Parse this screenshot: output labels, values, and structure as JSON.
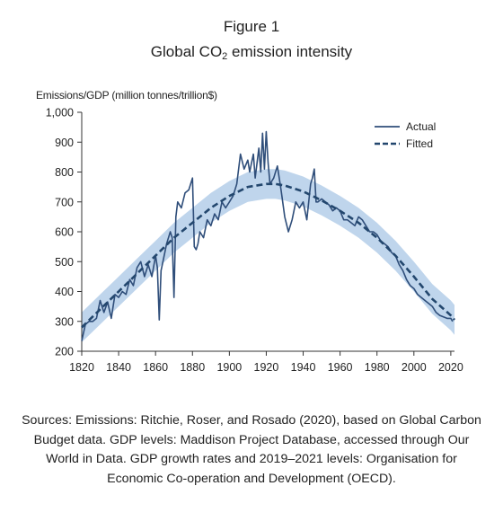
{
  "figure": {
    "label": "Figure 1",
    "title_main": "Global CO",
    "title_sub": "2",
    "title_rest": " emission intensity"
  },
  "sources_text": "Sources: Emissions: Ritchie, Roser, and Rosado (2020), based on Global Carbon Budget data. GDP levels: Maddison Project Database, accessed through Our World in Data. GDP growth rates and 2019–2021 levels: Organisation for Economic Co-operation and Development (OECD).",
  "colors": {
    "actual": "#2f4e7a",
    "fitted": "#23476e",
    "band": "#a9c7e6"
  },
  "chart_data": {
    "type": "line",
    "title": "Global CO2 emission intensity",
    "ylabel": "Emissions/GDP (million tonnes/trillion$)",
    "xlabel": "",
    "xlim": [
      1820,
      2022
    ],
    "ylim": [
      200,
      1000
    ],
    "xticks": [
      1820,
      1840,
      1860,
      1880,
      1900,
      1920,
      1940,
      1960,
      1980,
      2000,
      2020
    ],
    "yticks": [
      200,
      300,
      400,
      500,
      600,
      700,
      800,
      900,
      1000
    ],
    "ytick_labels": [
      "200",
      "300",
      "400",
      "500",
      "600",
      "700",
      "800",
      "900",
      "1,000"
    ],
    "legend_position": "top-right",
    "grid": false,
    "series": [
      {
        "name": "Actual",
        "style": "solid",
        "x": [
          1820,
          1822,
          1824,
          1826,
          1828,
          1830,
          1832,
          1834,
          1836,
          1838,
          1840,
          1842,
          1844,
          1846,
          1848,
          1850,
          1852,
          1854,
          1856,
          1858,
          1860,
          1861,
          1862,
          1863,
          1864,
          1866,
          1868,
          1869,
          1870,
          1871,
          1872,
          1874,
          1876,
          1878,
          1880,
          1881,
          1882,
          1883,
          1884,
          1886,
          1888,
          1890,
          1892,
          1894,
          1896,
          1898,
          1900,
          1902,
          1904,
          1906,
          1908,
          1910,
          1911,
          1912,
          1913,
          1914,
          1916,
          1917,
          1918,
          1919,
          1920,
          1921,
          1922,
          1924,
          1926,
          1928,
          1930,
          1932,
          1934,
          1936,
          1938,
          1940,
          1942,
          1944,
          1945,
          1946,
          1947,
          1948,
          1950,
          1952,
          1954,
          1956,
          1958,
          1960,
          1962,
          1964,
          1966,
          1968,
          1970,
          1972,
          1974,
          1976,
          1978,
          1980,
          1982,
          1984,
          1986,
          1988,
          1990,
          1992,
          1994,
          1996,
          1998,
          2000,
          2002,
          2004,
          2006,
          2008,
          2010,
          2012,
          2014,
          2016,
          2018,
          2020,
          2021
        ],
        "y": [
          235,
          290,
          300,
          300,
          310,
          370,
          330,
          365,
          310,
          390,
          380,
          400,
          390,
          440,
          420,
          480,
          500,
          450,
          490,
          450,
          520,
          480,
          305,
          470,
          500,
          560,
          600,
          580,
          380,
          650,
          700,
          680,
          730,
          740,
          780,
          550,
          540,
          560,
          600,
          580,
          640,
          620,
          660,
          640,
          700,
          680,
          700,
          720,
          760,
          860,
          810,
          840,
          800,
          830,
          860,
          780,
          880,
          800,
          930,
          810,
          935,
          830,
          760,
          780,
          820,
          740,
          650,
          600,
          640,
          700,
          680,
          700,
          640,
          760,
          780,
          810,
          700,
          700,
          710,
          700,
          690,
          670,
          680,
          670,
          640,
          640,
          630,
          620,
          650,
          640,
          620,
          600,
          600,
          590,
          570,
          560,
          550,
          530,
          520,
          490,
          470,
          440,
          420,
          410,
          390,
          380,
          370,
          360,
          350,
          330,
          320,
          315,
          310,
          310,
          300
        ]
      },
      {
        "name": "Fitted",
        "style": "dashed",
        "x": [
          1820,
          1830,
          1840,
          1850,
          1860,
          1870,
          1880,
          1890,
          1900,
          1910,
          1920,
          1925,
          1930,
          1940,
          1950,
          1960,
          1970,
          1980,
          1990,
          2000,
          2010,
          2020,
          2022
        ],
        "y": [
          280,
          340,
          400,
          460,
          520,
          580,
          630,
          680,
          720,
          750,
          760,
          760,
          755,
          735,
          705,
          670,
          630,
          580,
          520,
          450,
          375,
          320,
          305
        ],
        "band_lower": [
          230,
          290,
          350,
          410,
          470,
          530,
          580,
          630,
          670,
          700,
          710,
          710,
          705,
          685,
          655,
          620,
          580,
          530,
          470,
          400,
          325,
          270,
          255
        ],
        "band_upper": [
          330,
          390,
          450,
          510,
          570,
          630,
          680,
          730,
          770,
          800,
          810,
          810,
          805,
          785,
          755,
          720,
          680,
          630,
          570,
          500,
          425,
          370,
          355
        ]
      }
    ]
  }
}
